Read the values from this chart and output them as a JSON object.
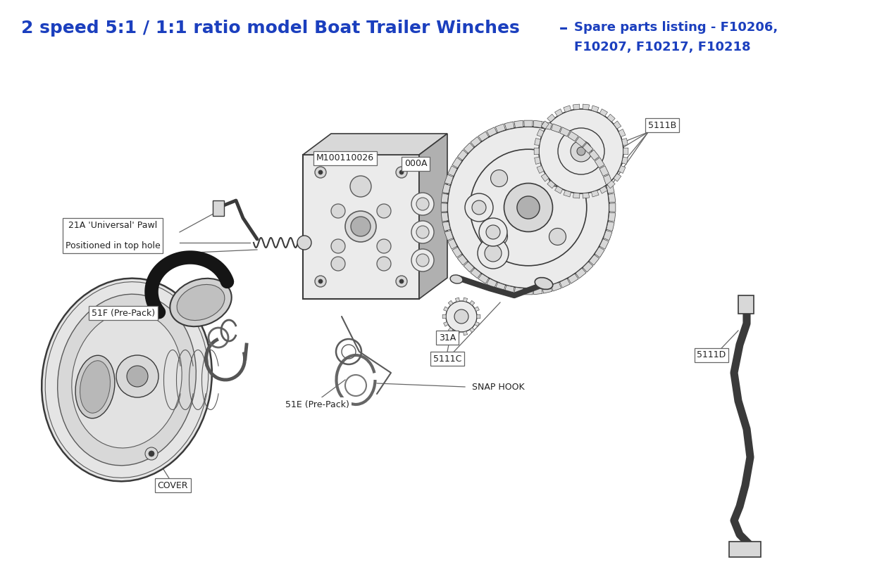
{
  "title_line1_bold": "2 speed 5:1 / 1:1 ratio model Boat Trailer Winches",
  "title_line1_dash": " – ",
  "title_line1_rest": "Spare parts listing - F10206,",
  "title_line2": "F10207, F10217, F10218",
  "title_color": "#1b3fbe",
  "title_bold_size": 18,
  "title_rest_size": 13,
  "bg_color": "#ffffff",
  "line_color": "#5a5a5a",
  "dark_color": "#3a3a3a",
  "light_fill": "#ebebeb",
  "mid_fill": "#d8d8d8",
  "dark_fill": "#b0b0b0"
}
